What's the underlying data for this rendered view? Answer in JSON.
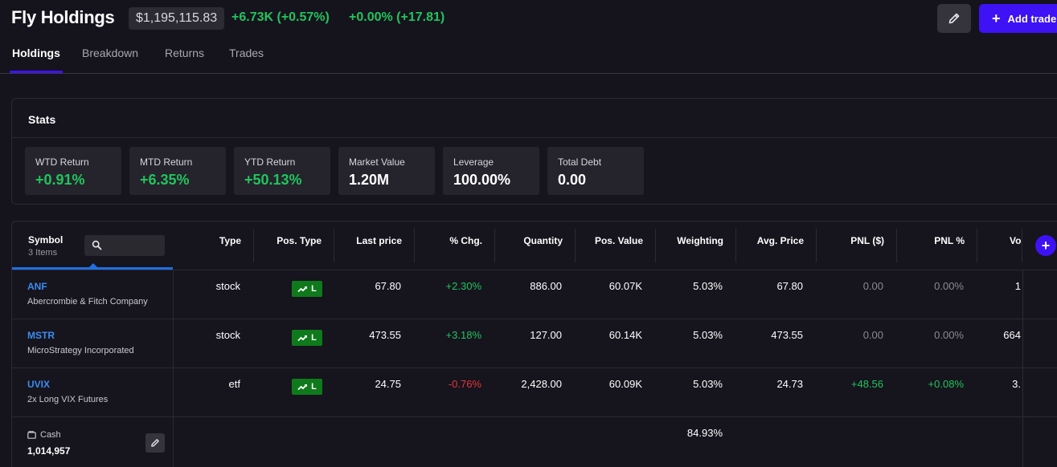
{
  "header": {
    "title": "Fly Holdings",
    "total_value": "$1,195,115.83",
    "day_change": "+6.73K (+0.57%)",
    "secondary_change": "+0.00% (+17.81)",
    "add_trade_label": "Add trade"
  },
  "tabs": [
    {
      "label": "Holdings",
      "active": true
    },
    {
      "label": "Breakdown",
      "active": false
    },
    {
      "label": "Returns",
      "active": false
    },
    {
      "label": "Trades",
      "active": false
    }
  ],
  "stats": {
    "title": "Stats",
    "cards": [
      {
        "label": "WTD Return",
        "value": "+0.91%"
      },
      {
        "label": "MTD Return",
        "value": "+6.35%"
      },
      {
        "label": "YTD Return",
        "value": "+50.13%"
      },
      {
        "label": "Market Value",
        "value": "1.20M"
      },
      {
        "label": "Leverage",
        "value": "100.00%"
      },
      {
        "label": "Total Debt",
        "value": "0.00"
      }
    ]
  },
  "table": {
    "symbol_header": "Symbol",
    "item_count": "3 Items",
    "search_placeholder": "",
    "columns": [
      "Type",
      "Pos. Type",
      "Last price",
      "% Chg.",
      "Quantity",
      "Pos. Value",
      "Weighting",
      "Avg. Price",
      "PNL ($)",
      "PNL %",
      "Vo"
    ],
    "rows": [
      {
        "ticker": "ANF",
        "name": "Abercrombie & Fitch Company",
        "type": "stock",
        "pos_type": "L",
        "last_price": "67.80",
        "pct_chg": "+2.30%",
        "quantity": "886.00",
        "pos_value": "60.07K",
        "weighting": "5.03%",
        "avg_price": "67.80",
        "pnl": "0.00",
        "pnl_pct": "0.00%",
        "vol": "1"
      },
      {
        "ticker": "MSTR",
        "name": "MicroStrategy Incorporated",
        "type": "stock",
        "pos_type": "L",
        "last_price": "473.55",
        "pct_chg": "+3.18%",
        "quantity": "127.00",
        "pos_value": "60.14K",
        "weighting": "5.03%",
        "avg_price": "473.55",
        "pnl": "0.00",
        "pnl_pct": "0.00%",
        "vol": "664"
      },
      {
        "ticker": "UVIX",
        "name": "2x Long VIX Futures",
        "type": "etf",
        "pos_type": "L",
        "last_price": "24.75",
        "pct_chg": "-0.76%",
        "quantity": "2,428.00",
        "pos_value": "60.09K",
        "weighting": "5.03%",
        "avg_price": "24.73",
        "pnl": "+48.56",
        "pnl_pct": "+0.08%",
        "vol": "3."
      }
    ],
    "cash": {
      "label": "Cash",
      "value": "1,014,957",
      "weighting": "84.93%"
    }
  },
  "colors": {
    "accent": "#3d12f5",
    "positive": "#21c45d",
    "negative": "#e5353b",
    "link": "#3b8df0",
    "badge_long": "#0f7a1c"
  }
}
